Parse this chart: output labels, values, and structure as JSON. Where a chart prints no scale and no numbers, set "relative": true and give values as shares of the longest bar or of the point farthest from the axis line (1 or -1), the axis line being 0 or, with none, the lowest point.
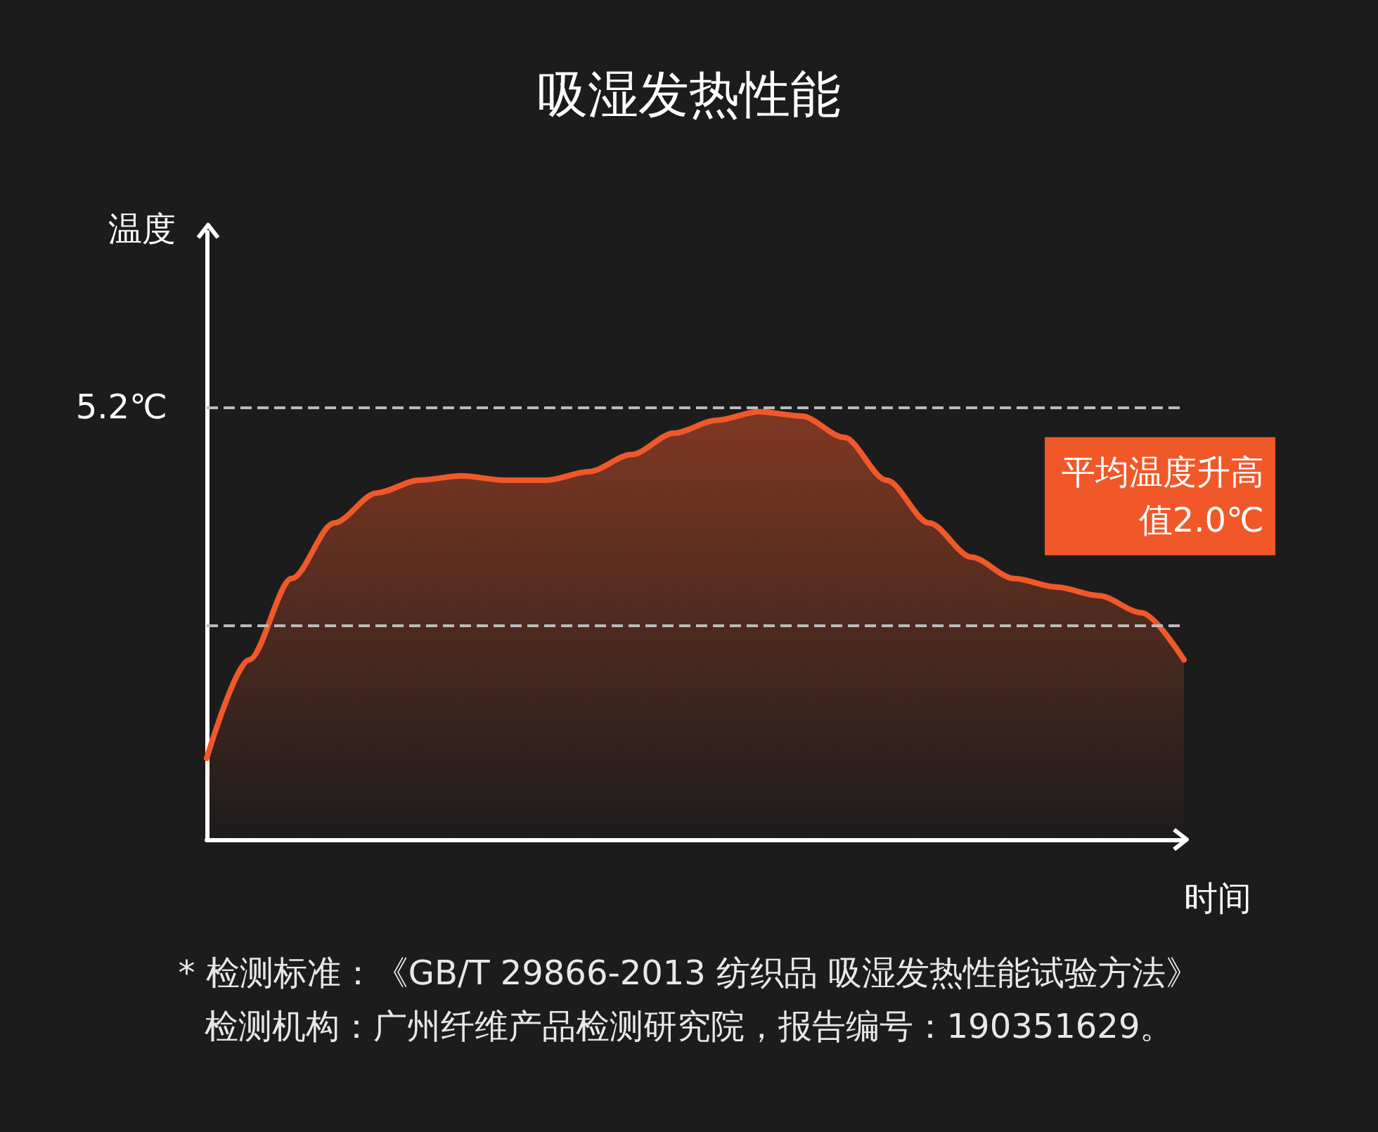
{
  "chart_data": {
    "type": "area",
    "title": "吸湿发热性能",
    "ylabel": "温度",
    "xlabel": "时间",
    "relative": true,
    "categories": [
      null,
      null,
      null,
      null,
      null,
      null,
      null,
      null,
      null,
      null,
      null,
      null,
      null,
      null,
      null,
      null,
      null,
      null,
      null,
      null,
      null,
      null,
      null,
      null
    ],
    "series": [
      {
        "color": "#f0582a",
        "values": [
          0.19,
          0.42,
          0.61,
          0.74,
          0.81,
          0.84,
          0.85,
          0.84,
          0.84,
          0.86,
          0.9,
          0.95,
          0.98,
          1.0,
          0.99,
          0.94,
          0.84,
          0.74,
          0.66,
          0.61,
          0.59,
          0.57,
          0.53,
          0.42
        ]
      }
    ],
    "ref_lines": [
      {
        "axis": "y",
        "value": 1.01,
        "label": "5.2℃",
        "color": "#bbbbbb",
        "line_style": "dashed"
      },
      {
        "axis": "y",
        "value": 0.5,
        "label": "平均温度升高值2.0℃",
        "color": "#bbbbbb",
        "line_style": "dashed"
      }
    ],
    "marker": "none",
    "grid": false,
    "annotations": [
      "* 检测标准：《GB/T 29866-2013 纺织品 吸湿发热性能试验方法》",
      "检测机构：广州纤维产品检测研究院，报告编号：190351629。"
    ]
  }
}
